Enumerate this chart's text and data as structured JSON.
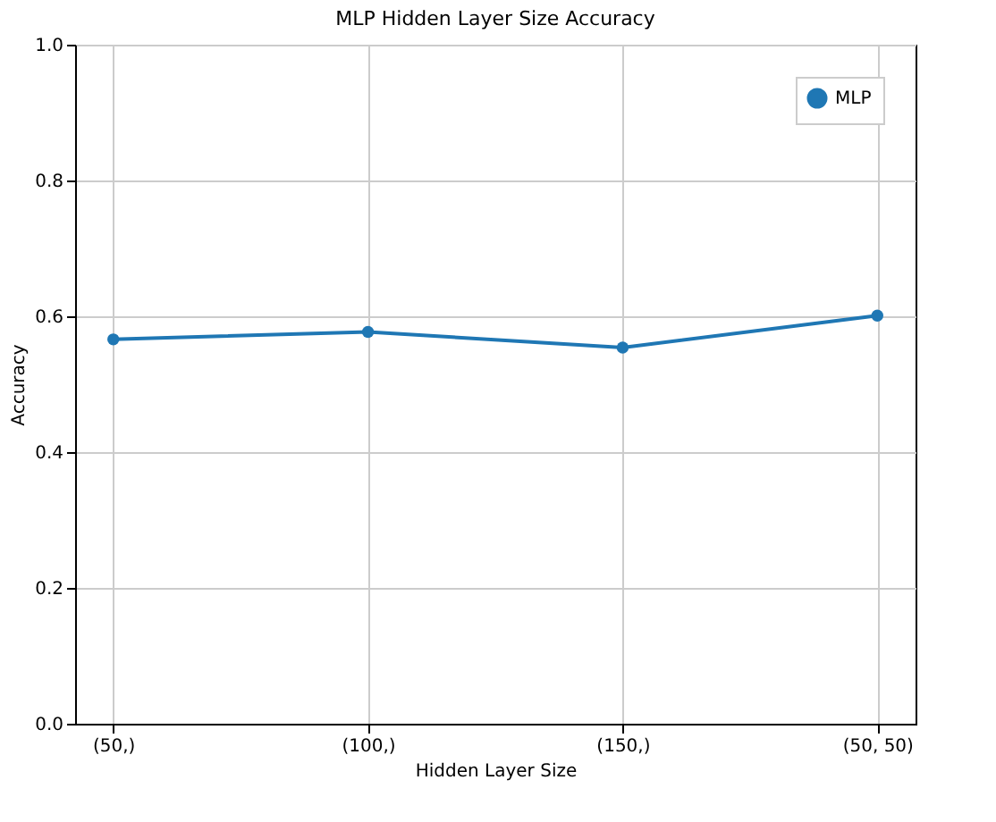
{
  "chart_data": {
    "type": "line",
    "title": "MLP Hidden Layer Size Accuracy",
    "xlabel": "Hidden Layer Size",
    "ylabel": "Accuracy",
    "categories": [
      "(50,)",
      "(100,)",
      "(150,)",
      "(50, 50)"
    ],
    "series": [
      {
        "name": "MLP",
        "color": "#1f77b4",
        "values": [
          0.566,
          0.577,
          0.554,
          0.601
        ]
      }
    ],
    "ylim": [
      0,
      1
    ],
    "yticks": [
      {
        "value": 0,
        "label": "0.0"
      },
      0.2,
      0.4,
      0.6,
      0.8,
      {
        "value": 1,
        "label": "1.0"
      }
    ],
    "grid": true,
    "legend": "top right",
    "marker": "circle",
    "line_style": "solid"
  }
}
